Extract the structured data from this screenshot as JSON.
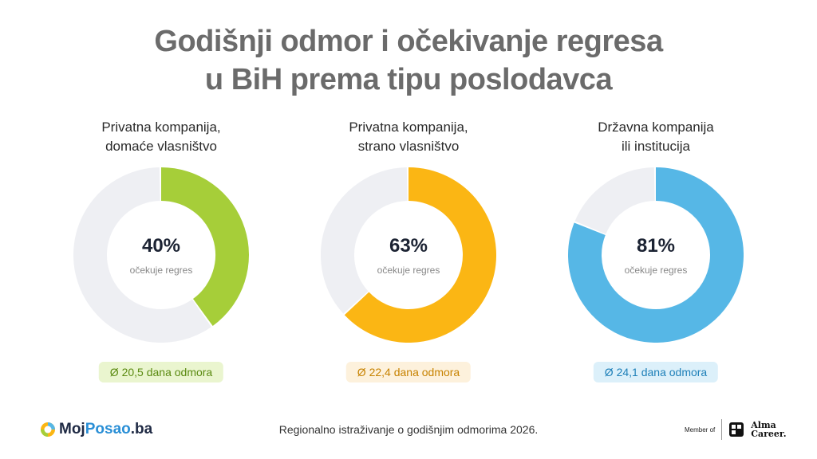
{
  "title": {
    "line1": "Godišnji odmor i očekivanje regresa",
    "line2": "u BiH prema tipu poslodavca"
  },
  "chart_data": [
    {
      "type": "pie",
      "title_line1": "Privatna kompanija,",
      "title_line2": "domaće vlasništvo",
      "value": 40,
      "value_label": "40%",
      "sublabel": "očekuje regres",
      "color": "#a6ce39",
      "rest_color": "#eeeff3",
      "pill_label": "Ø 20,5 dana odmora",
      "pill_bg": "#eaf5cf",
      "pill_color": "#5a8a10"
    },
    {
      "type": "pie",
      "title_line1": "Privatna kompanija,",
      "title_line2": "strano vlasništvo",
      "value": 63,
      "value_label": "63%",
      "sublabel": "očekuje regres",
      "color": "#fbb614",
      "rest_color": "#eeeff3",
      "pill_label": "Ø 22,4 dana odmora",
      "pill_bg": "#fdf1dc",
      "pill_color": "#c78200"
    },
    {
      "type": "pie",
      "title_line1": "Državna kompanija",
      "title_line2": "ili institucija",
      "value": 81,
      "value_label": "81%",
      "sublabel": "očekuje regres",
      "color": "#56b7e6",
      "rest_color": "#eeeff3",
      "pill_label": "Ø 24,1 dana odmora",
      "pill_bg": "#dcf0fa",
      "pill_color": "#1d7fb8"
    }
  ],
  "footer": {
    "logo_left": "Moj",
    "logo_mid": "Posao",
    "logo_right": ".ba",
    "center_text": "Regionalno istraživanje o godišnjim odmorima 2026.",
    "member_of": "Member of",
    "alma_line1": "Alma",
    "alma_line2": "Career."
  }
}
